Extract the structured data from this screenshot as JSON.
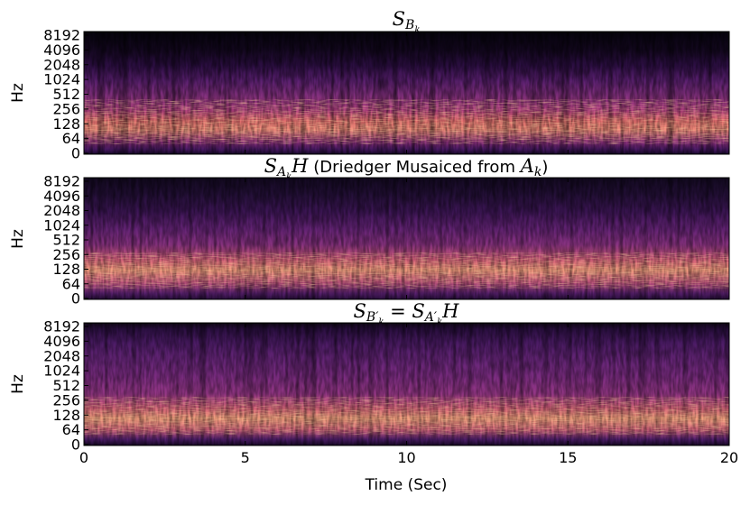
{
  "chart_data": [
    {
      "type": "heatmap",
      "title": "S_{B_k}",
      "title_parts": [
        {
          "text": "S",
          "style": "math"
        },
        {
          "text": "B",
          "style": "math-sub"
        },
        {
          "text": "k",
          "style": "math-subsub"
        }
      ],
      "ylabel": "Hz",
      "yticks": [
        "0",
        "64",
        "128",
        "256",
        "512",
        "1024",
        "2048",
        "4096",
        "8192"
      ],
      "xlim": [
        0,
        20
      ],
      "colormap": "magma",
      "energy_band": "strongest energy roughly 64–512 Hz, weaker up to ~2048 Hz, dark above"
    },
    {
      "type": "heatmap",
      "title": "S_{A_k}H (Driedger Musaiced from A_k)",
      "title_parts": [
        {
          "text": "S",
          "style": "math"
        },
        {
          "text": "A",
          "style": "math-sub"
        },
        {
          "text": "k",
          "style": "math-subsub"
        },
        {
          "text": "H",
          "style": "math"
        },
        {
          "text": " (Driedger Musaiced from ",
          "style": "plain"
        },
        {
          "text": "A",
          "style": "math"
        },
        {
          "text": "k",
          "style": "math-sub"
        },
        {
          "text": ")",
          "style": "plain"
        }
      ],
      "ylabel": "Hz",
      "yticks": [
        "0",
        "64",
        "128",
        "256",
        "512",
        "1024",
        "2048",
        "4096",
        "8192"
      ],
      "xlim": [
        0,
        20
      ],
      "colormap": "magma",
      "energy_band": "strongest energy roughly 64–512 Hz, diffuse up to ~4096 Hz"
    },
    {
      "type": "heatmap",
      "title": "S_{B'_k} = S_{A'_k}H",
      "title_parts": [
        {
          "text": "S",
          "style": "math"
        },
        {
          "text": "B′",
          "style": "math-sub"
        },
        {
          "text": "k",
          "style": "math-subsub"
        },
        {
          "text": " = ",
          "style": "math-plain"
        },
        {
          "text": "S",
          "style": "math"
        },
        {
          "text": "A′",
          "style": "math-sub"
        },
        {
          "text": "k",
          "style": "math-subsub"
        },
        {
          "text": "H",
          "style": "math"
        }
      ],
      "ylabel": "Hz",
      "yticks": [
        "0",
        "64",
        "128",
        "256",
        "512",
        "1024",
        "2048",
        "4096",
        "8192"
      ],
      "xlabel": "Time (Sec)",
      "xticks": [
        "0",
        "5",
        "10",
        "15",
        "20"
      ],
      "xlim": [
        0,
        20
      ],
      "colormap": "magma",
      "energy_band": "strongest energy roughly 64–256 Hz, broad energy up to ~8192 Hz"
    }
  ]
}
